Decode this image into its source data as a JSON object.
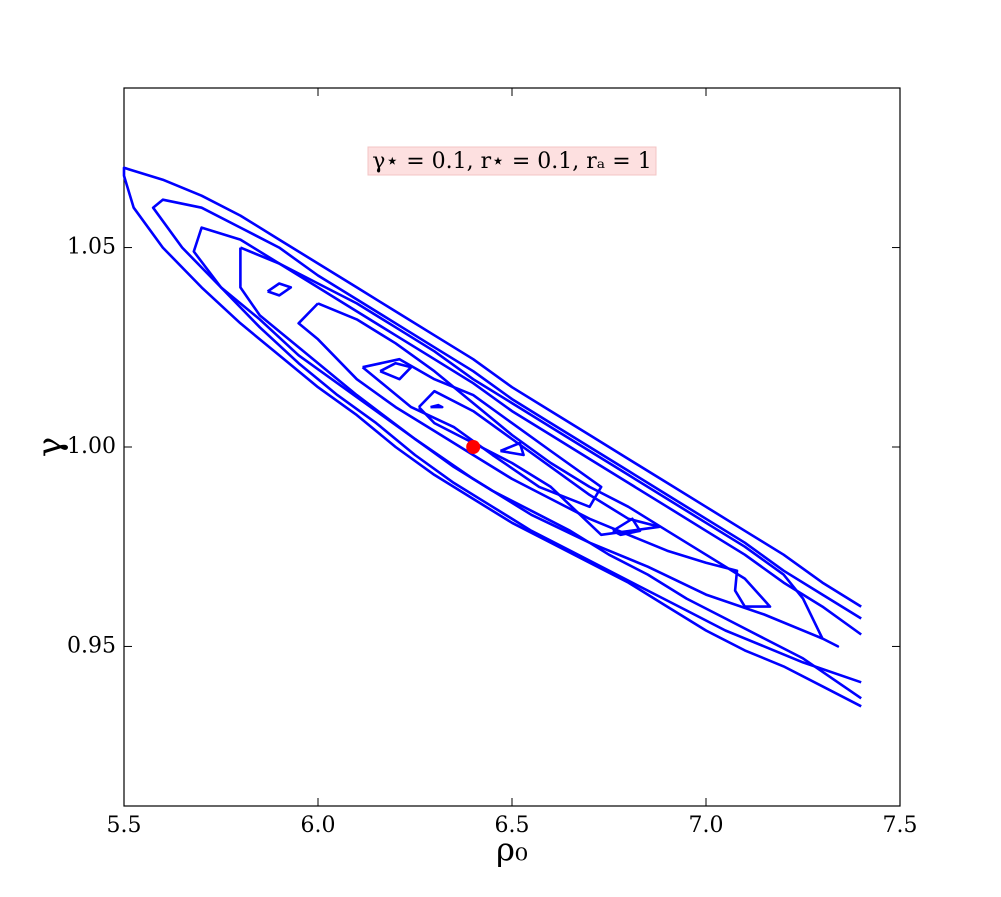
{
  "chart_data": {
    "type": "contour",
    "annotation": "γ⋆ = 0.1, r⋆ = 0.1, rₐ = 1",
    "x_label": "ρ₀",
    "y_label": "γ",
    "xlim": [
      5.5,
      7.5
    ],
    "ylim": [
      0.91,
      1.09
    ],
    "xticks": [
      5.5,
      {
        "value": 6,
        "label": "6.0"
      },
      6.5,
      {
        "value": 7,
        "label": "7.0"
      },
      7.5
    ],
    "yticks": [
      0.95,
      {
        "value": 1,
        "label": "1.00"
      },
      1.05
    ],
    "line_color": "#0000ff",
    "lines": [
      {
        "x": [
          7.4,
          7.3,
          7.2,
          7.1,
          7.0,
          6.9,
          6.8,
          6.7,
          6.6,
          6.5,
          6.4,
          6.3,
          6.2,
          6.1,
          6.0,
          5.9,
          5.8,
          5.7,
          5.6,
          5.5,
          5.5,
          5.525,
          5.6,
          5.7,
          5.8,
          5.9,
          6.0,
          6.1,
          6.2,
          6.3,
          6.4,
          6.5,
          6.6,
          6.7,
          6.8,
          6.9,
          7.0,
          7.1,
          7.2,
          7.3,
          7.4
        ],
        "y": [
          0.96,
          0.966,
          0.973,
          0.979,
          0.985,
          0.991,
          0.997,
          1.003,
          1.009,
          1.015,
          1.022,
          1.028,
          1.034,
          1.04,
          1.046,
          1.052,
          1.058,
          1.063,
          1.067,
          1.07,
          1.068,
          1.06,
          1.05,
          1.04,
          1.031,
          1.023,
          1.015,
          1.008,
          1.0,
          0.993,
          0.987,
          0.981,
          0.976,
          0.971,
          0.966,
          0.96,
          0.954,
          0.949,
          0.945,
          0.94,
          0.935
        ]
      },
      {
        "x": [
          7.4,
          7.3,
          7.2,
          7.1,
          7.0,
          6.9,
          6.8,
          6.7,
          6.6,
          6.5,
          6.4,
          6.3,
          6.2,
          6.1,
          6.0,
          5.9,
          5.8,
          5.7,
          5.6,
          5.575,
          5.65,
          5.75,
          5.85,
          5.95,
          6.05,
          6.15,
          6.25,
          6.35,
          6.45,
          6.55,
          6.65,
          6.75,
          6.85,
          6.95,
          7.05,
          7.15,
          7.25,
          7.4
        ],
        "y": [
          0.957,
          0.963,
          0.969,
          0.976,
          0.982,
          0.988,
          0.994,
          1.0,
          1.006,
          1.012,
          1.019,
          1.025,
          1.031,
          1.037,
          1.043,
          1.05,
          1.055,
          1.06,
          1.062,
          1.06,
          1.05,
          1.04,
          1.032,
          1.023,
          1.016,
          1.009,
          1.002,
          0.995,
          0.989,
          0.984,
          0.979,
          0.973,
          0.968,
          0.962,
          0.957,
          0.952,
          0.947,
          0.937
        ]
      },
      {
        "x": [
          7.4,
          7.3,
          7.2,
          7.1,
          7.0,
          6.9,
          6.8,
          6.7,
          6.6,
          6.5,
          6.4,
          6.3,
          6.2,
          6.1,
          6.0,
          5.9,
          5.8,
          5.7,
          5.68,
          5.75,
          5.85,
          5.95,
          6.05,
          6.15,
          6.25,
          6.35,
          6.45,
          6.55,
          6.65,
          6.75,
          6.85,
          6.95,
          7.05,
          7.15,
          7.25,
          7.4
        ],
        "y": [
          0.953,
          0.96,
          0.966,
          0.973,
          0.979,
          0.985,
          0.991,
          0.997,
          1.003,
          1.009,
          1.016,
          1.022,
          1.028,
          1.034,
          1.04,
          1.046,
          1.052,
          1.055,
          1.049,
          1.04,
          1.03,
          1.021,
          1.013,
          1.006,
          0.998,
          0.991,
          0.985,
          0.979,
          0.974,
          0.969,
          0.964,
          0.959,
          0.954,
          0.95,
          0.946,
          0.941
        ]
      },
      {
        "x": [
          5.8,
          5.8,
          5.85,
          5.95,
          6.1,
          6.25,
          6.4,
          6.55,
          6.7,
          6.85,
          7.0,
          7.15,
          7.3,
          7.34,
          7.3,
          7.25,
          7.2,
          7.1,
          7.0,
          6.9,
          6.8,
          6.7,
          6.6,
          6.5,
          6.4,
          6.3,
          6.2,
          6.1,
          6.0,
          5.9,
          5.8
        ],
        "y": [
          1.05,
          1.04,
          1.033,
          1.025,
          1.013,
          1.002,
          0.992,
          0.983,
          0.976,
          0.97,
          0.963,
          0.958,
          0.952,
          0.95,
          0.952,
          0.962,
          0.968,
          0.975,
          0.981,
          0.987,
          0.993,
          0.999,
          1.005,
          1.011,
          1.017,
          1.024,
          1.03,
          1.036,
          1.041,
          1.046,
          1.05
        ]
      },
      {
        "x": [
          6.0,
          6.1,
          6.2,
          6.3,
          6.4,
          6.5,
          6.6,
          6.7,
          6.8,
          6.9,
          7.0,
          7.1,
          7.165,
          7.1,
          7.075,
          7.08,
          7.0,
          6.9,
          6.8,
          6.7,
          6.6,
          6.5,
          6.4,
          6.3,
          6.2,
          6.1,
          6.0,
          5.95,
          6.0
        ],
        "y": [
          1.036,
          1.032,
          1.026,
          1.019,
          1.011,
          1.003,
          0.996,
          0.99,
          0.985,
          0.979,
          0.973,
          0.967,
          0.96,
          0.96,
          0.964,
          0.969,
          0.971,
          0.974,
          0.978,
          0.982,
          0.987,
          0.992,
          0.998,
          1.004,
          1.01,
          1.017,
          1.027,
          1.031,
          1.036
        ]
      },
      {
        "x": [
          6.115,
          6.21,
          6.3,
          6.4,
          6.5,
          6.6,
          6.73,
          6.7,
          6.57,
          6.45,
          6.35,
          6.24,
          6.115
        ],
        "y": [
          1.02,
          1.022,
          1.017,
          1.013,
          1.006,
          0.999,
          0.99,
          0.985,
          0.99,
          0.998,
          1.005,
          1.01,
          1.02
        ]
      },
      {
        "x": [
          6.26,
          6.3,
          6.4,
          6.5,
          6.6,
          6.7,
          6.8,
          6.88,
          6.73,
          6.6,
          6.5,
          6.4,
          6.3,
          6.26
        ],
        "y": [
          1.01,
          1.014,
          1.009,
          1.002,
          0.995,
          0.988,
          0.982,
          0.98,
          0.978,
          0.99,
          0.996,
          1.001,
          1.006,
          1.01
        ]
      },
      {
        "x": [
          5.87,
          5.9,
          5.93,
          5.9,
          5.87
        ],
        "y": [
          1.039,
          1.041,
          1.04,
          1.038,
          1.039
        ]
      },
      {
        "x": [
          6.16,
          6.2,
          6.24,
          6.21,
          6.16
        ],
        "y": [
          1.019,
          1.021,
          1.02,
          1.017,
          1.019
        ]
      },
      {
        "x": [
          6.29,
          6.31,
          6.32,
          6.29
        ],
        "y": [
          1.01,
          1.0105,
          1.01,
          1.01
        ]
      },
      {
        "x": [
          6.47,
          6.52,
          6.53,
          6.47
        ],
        "y": [
          0.999,
          1.001,
          0.998,
          0.999
        ]
      },
      {
        "x": [
          6.76,
          6.81,
          6.83,
          6.78,
          6.76
        ],
        "y": [
          0.979,
          0.982,
          0.979,
          0.978,
          0.979
        ]
      }
    ],
    "point": {
      "x": 6.4,
      "y": 1.0,
      "color": "#ff0000"
    }
  }
}
